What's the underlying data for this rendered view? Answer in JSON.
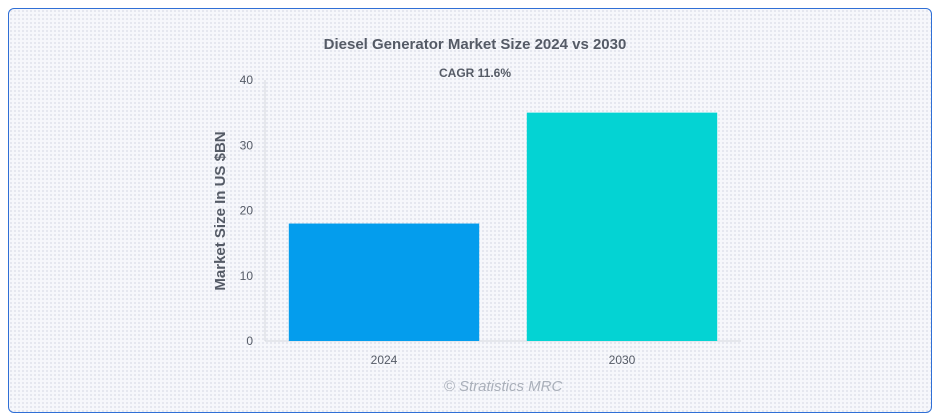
{
  "chart_data": {
    "type": "bar",
    "title": "Diesel Generator Market Size 2024 vs 2030",
    "subtitle": "CAGR 11.6%",
    "categories": [
      "2024",
      "2030"
    ],
    "values": [
      18,
      35
    ],
    "colors": [
      "#049ded",
      "#04d3d3"
    ],
    "ylabel": "Market Size In US $BN",
    "ylim": [
      0,
      40
    ],
    "yticks": [
      "0",
      "10",
      "20",
      "30",
      "40"
    ],
    "grid": false,
    "legend": "none"
  },
  "credit": "© Stratistics MRC"
}
